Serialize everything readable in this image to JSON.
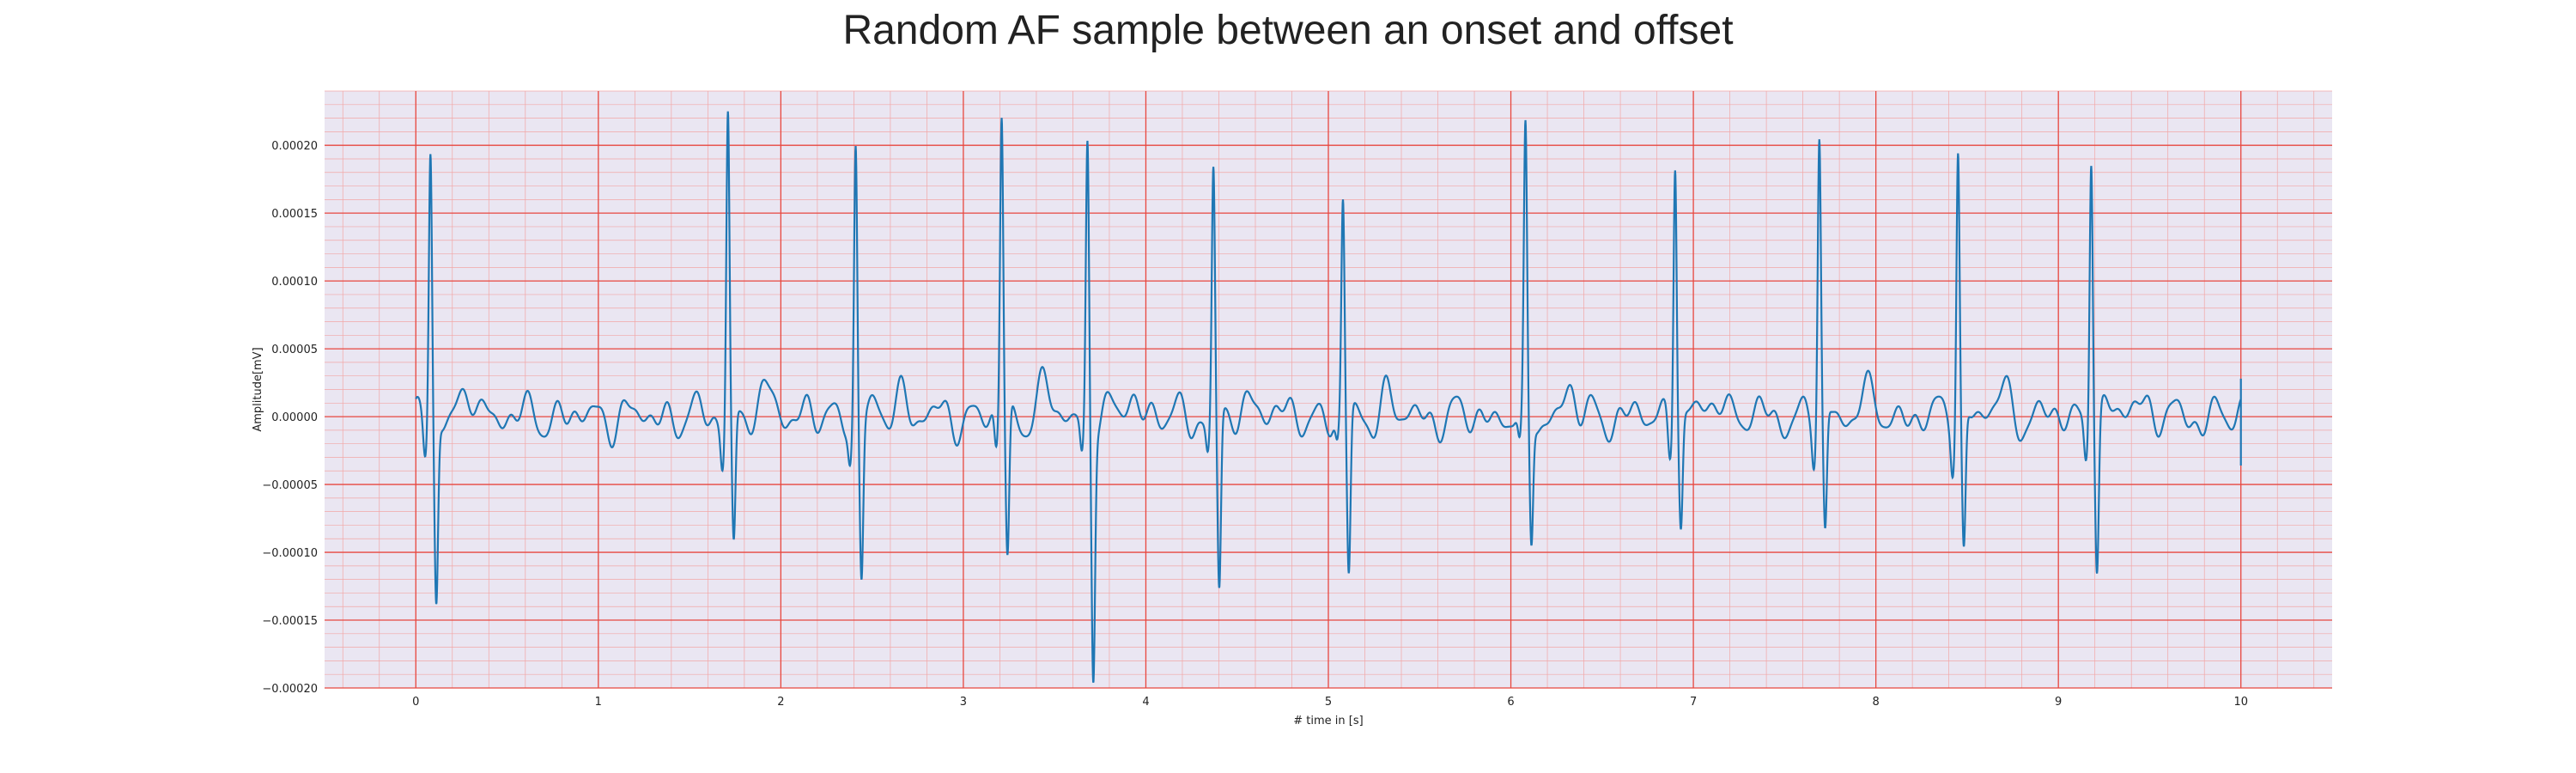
{
  "chart_data": {
    "type": "line",
    "title": "Random AF sample between an onset and offset",
    "xlabel": "# time in [s]",
    "ylabel": "Amplitude[mV]",
    "xlim": [
      -0.5,
      10.5
    ],
    "ylim": [
      -0.0002,
      0.00024
    ],
    "xticks": [
      0,
      1,
      2,
      3,
      4,
      5,
      6,
      7,
      8,
      9,
      10
    ],
    "xtick_labels": [
      "0",
      "1",
      "2",
      "3",
      "4",
      "5",
      "6",
      "7",
      "8",
      "9",
      "10"
    ],
    "yticks": [
      -0.0002,
      -0.00015,
      -0.0001,
      -5e-05,
      0,
      5e-05,
      0.0001,
      0.00015,
      0.0002
    ],
    "ytick_labels": [
      "−0.00020",
      "−0.00015",
      "−0.00010",
      "−0.00005",
      "0.00000",
      "0.00005",
      "0.00010",
      "0.00015",
      "0.00020"
    ],
    "grid": true,
    "minor_grid": true,
    "colors": {
      "line": "#1f77b4",
      "background": "#eae6f2",
      "major_grid": "#e8473f",
      "minor_grid": "#f2a6a6"
    },
    "baseline_noise": 1e-05,
    "series": [
      {
        "beats": [
          {
            "t": 0.08,
            "r": 0.0002,
            "s": -0.000133
          },
          {
            "t": 1.71,
            "r": 0.000227,
            "s": -9.7e-05
          },
          {
            "t": 2.41,
            "r": 0.000201,
            "s": -0.000116
          },
          {
            "t": 3.21,
            "r": 0.000222,
            "s": -0.000108
          },
          {
            "t": 3.68,
            "r": 0.000203,
            "s": -0.000182
          },
          {
            "t": 4.37,
            "r": 0.000178,
            "s": -0.000134
          },
          {
            "t": 5.08,
            "r": 0.000155,
            "s": -0.000121
          },
          {
            "t": 6.08,
            "r": 0.000197,
            "s": -9.5e-05
          },
          {
            "t": 6.9,
            "r": 0.000201,
            "s": -7.8e-05
          },
          {
            "t": 7.69,
            "r": 0.000206,
            "s": -9.1e-05
          },
          {
            "t": 8.45,
            "r": 0.000205,
            "s": -0.000101
          },
          {
            "t": 9.18,
            "r": 0.000203,
            "s": -0.00011
          }
        ],
        "t_start": 0.0,
        "t_end": 10.0,
        "end_value": 2.8e-05
      }
    ]
  }
}
